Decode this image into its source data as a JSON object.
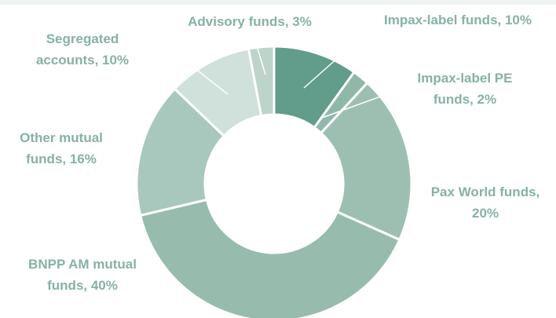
{
  "chart_data": {
    "type": "donut",
    "values": [
      10,
      2,
      20,
      40,
      16,
      10,
      3
    ],
    "value_labels": [
      "Impax-label funds, 10%",
      "Impax-label PE funds, 2%",
      "Pax World funds, 20%",
      "BNPP AM mutual funds, 40%",
      "Other mutual funds, 16%",
      "Segregated accounts, 10%",
      "Advisory funds, 3%"
    ],
    "colors": [
      "#629c8a",
      "#8fb8a9",
      "#9dbfb2",
      "#97bcad",
      "#a9c8bd",
      "#d0e1db",
      "#bdd4cb"
    ]
  }
}
